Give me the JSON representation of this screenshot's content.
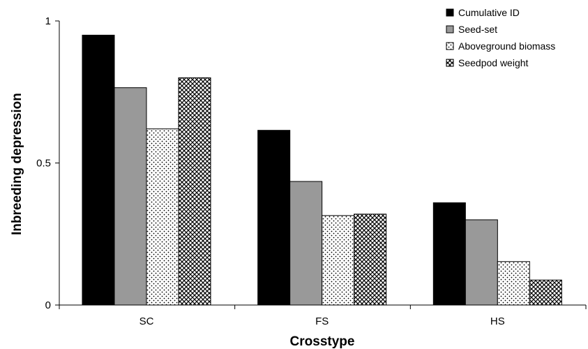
{
  "chart_data": {
    "type": "bar",
    "title": "",
    "xlabel": "Crosstype",
    "ylabel": "Inbreeding depression",
    "categories": [
      "SC",
      "FS",
      "HS"
    ],
    "ylim": [
      0,
      1
    ],
    "yticks": [
      {
        "value": 0,
        "label": "0"
      },
      {
        "value": 0.5,
        "label": "0.5"
      },
      {
        "value": 1,
        "label": "1"
      }
    ],
    "grid": false,
    "legend_position": "top-right",
    "series": [
      {
        "name": "Cumulative ID",
        "pattern": "solid-black",
        "values": [
          0.95,
          0.615,
          0.36
        ]
      },
      {
        "name": "Seed-set",
        "pattern": "solid-gray",
        "values": [
          0.765,
          0.435,
          0.3
        ]
      },
      {
        "name": "Aboveground biomass",
        "pattern": "dotted",
        "values": [
          0.62,
          0.315,
          0.153
        ]
      },
      {
        "name": "Seedpod weight",
        "pattern": "crosshatch",
        "values": [
          0.8,
          0.32,
          0.088
        ]
      }
    ]
  }
}
